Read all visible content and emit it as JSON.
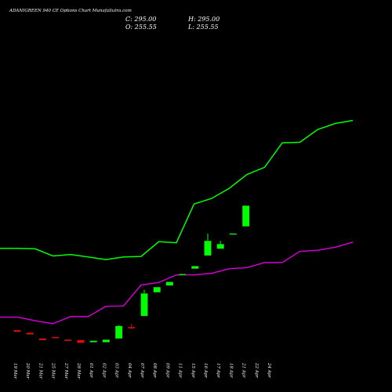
{
  "header": {
    "title": "ADANIGREEN 940 CE Options Chart MunafaSutra.com",
    "open": "O: 255.55",
    "close": "C: 295.00",
    "high": "H: 295.00",
    "low": "L: 255.55"
  },
  "colors": {
    "background": "#000000",
    "bullish": "#00ff00",
    "bearish": "#ff0000",
    "upper_band": "#00ff00",
    "lower_band": "#cc00cc",
    "text": "#ffffff"
  },
  "chart_data": {
    "type": "candlestick",
    "title": "ADANIGREEN 940 CE Options Chart MunafaSutra.com",
    "categories": [
      "19 Mar",
      "20 Mar",
      "21 Mar",
      "25 Mar",
      "27 Mar",
      "28 Mar",
      "01 Apr",
      "02 Apr",
      "03 Apr",
      "04 Apr",
      "07 Apr",
      "08 Apr",
      "09 Apr",
      "11 Apr",
      "15 Apr",
      "16 Apr",
      "17 Apr",
      "18 Apr",
      "21 Apr",
      "22 Apr",
      "24 Apr"
    ],
    "price_range": [
      0,
      320
    ],
    "candles": [
      {
        "o": 58,
        "h": 58,
        "l": 55,
        "c": 55
      },
      {
        "o": 53,
        "h": 53,
        "l": 50,
        "c": 50
      },
      {
        "o": 42,
        "h": 42,
        "l": 39,
        "c": 39
      },
      {
        "o": 45,
        "h": 45,
        "l": 43,
        "c": 43
      },
      {
        "o": 40,
        "h": 40,
        "l": 39.5,
        "c": 39.5
      },
      {
        "o": 39,
        "h": 39,
        "l": 34,
        "c": 34
      },
      {
        "o": 35,
        "h": 38,
        "l": 35,
        "c": 38
      },
      {
        "o": 35,
        "h": 40,
        "l": 35,
        "c": 40
      },
      {
        "o": 42,
        "h": 68,
        "l": 42,
        "c": 66
      },
      {
        "o": 64,
        "h": 70,
        "l": 60,
        "c": 62
      },
      {
        "o": 85,
        "h": 135,
        "l": 85,
        "c": 128
      },
      {
        "o": 130,
        "h": 140,
        "l": 130,
        "c": 140
      },
      {
        "o": 143,
        "h": 150,
        "l": 143,
        "c": 150
      },
      {
        "o": 164,
        "h": 165,
        "l": 164,
        "c": 165
      },
      {
        "o": 175,
        "h": 180,
        "l": 175,
        "c": 180
      },
      {
        "o": 200,
        "h": 242,
        "l": 200,
        "c": 228
      },
      {
        "o": 213,
        "h": 228,
        "l": 213,
        "c": 222
      },
      {
        "o": 240,
        "h": 242,
        "l": 240,
        "c": 242
      },
      {
        "o": 255.55,
        "h": 295,
        "l": 255.55,
        "c": 295
      }
    ],
    "candle_slots": [
      0,
      1,
      2,
      3,
      4,
      5,
      6,
      7,
      8,
      9,
      10,
      11,
      12,
      13,
      14,
      15,
      16,
      17,
      18
    ],
    "upper_band": [
      605,
      605,
      604,
      590,
      593,
      588,
      583,
      588,
      589,
      618,
      616,
      692,
      703,
      723,
      750,
      764,
      812,
      813,
      838,
      850,
      856
    ],
    "lower_band": [
      470,
      470,
      463,
      457,
      471,
      471,
      491,
      492,
      533,
      538,
      553,
      553,
      556,
      565,
      567,
      577,
      577,
      599,
      601,
      607,
      617
    ],
    "band_range": [
      0,
      1000
    ],
    "grid": false
  }
}
